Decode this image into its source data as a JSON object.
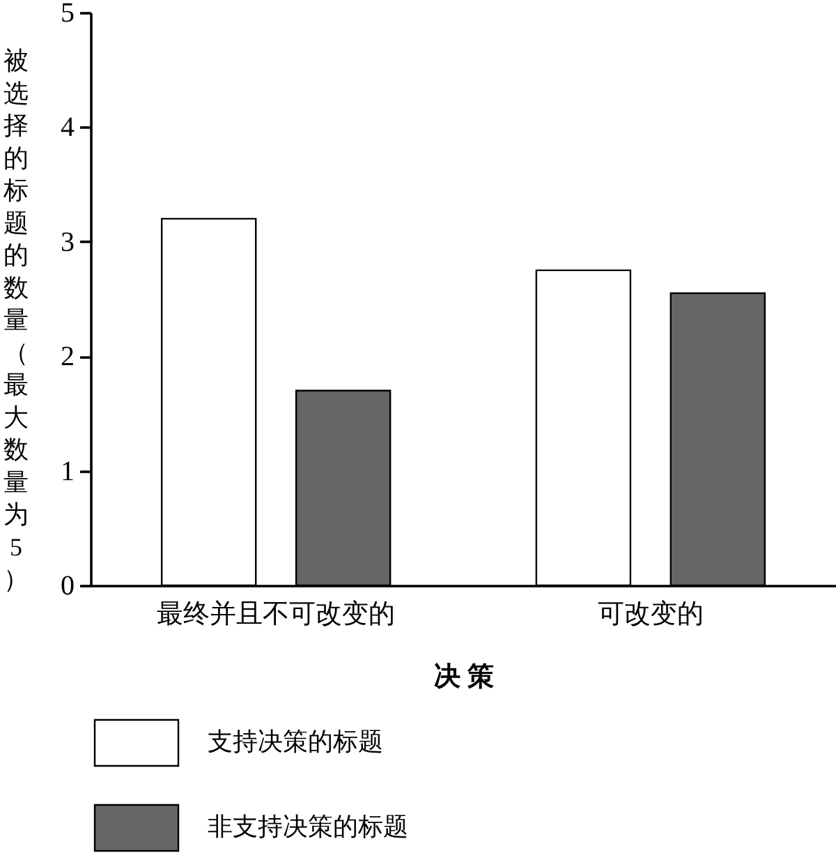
{
  "chart_data": {
    "type": "bar",
    "categories": [
      "最终并且不可改变的",
      "可改变的"
    ],
    "series": [
      {
        "name": "支持决策的标题",
        "color": "#ffffff",
        "values": [
          3.2,
          2.75
        ]
      },
      {
        "name": "非支持决策的标题",
        "color": "#666666",
        "values": [
          1.7,
          2.55
        ]
      }
    ],
    "xlabel": "决 策",
    "ylabel": "被选择的标题的数量（最大数量为5）",
    "ylim": [
      0,
      5
    ],
    "yticks": [
      0,
      1,
      2,
      3,
      4,
      5
    ],
    "legend": "bottom"
  }
}
